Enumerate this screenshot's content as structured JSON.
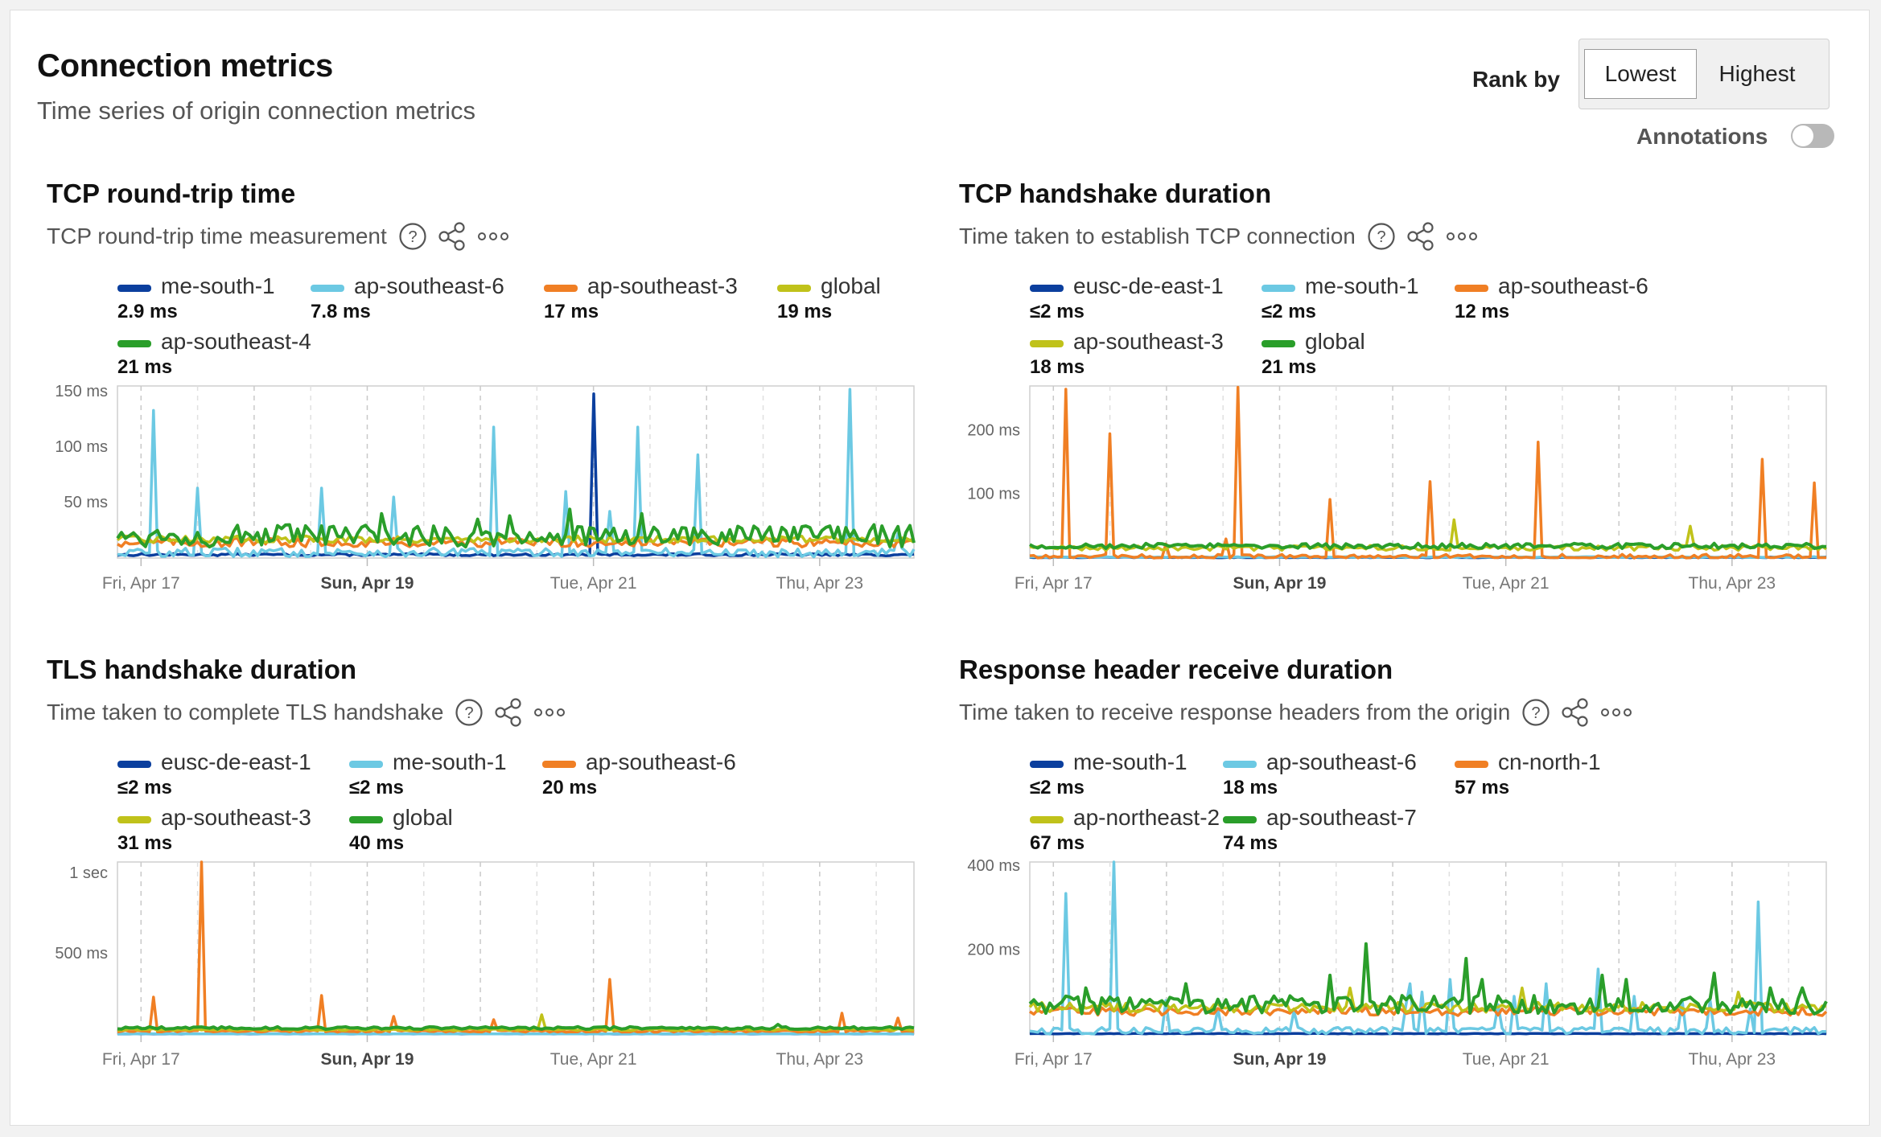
{
  "header": {
    "title": "Connection metrics",
    "subtitle": "Time series of origin connection metrics",
    "rank_by_label": "Rank by",
    "rank_options": [
      "Lowest",
      "Highest"
    ],
    "rank_selected": "Lowest",
    "annotations_label": "Annotations",
    "annotations_on": false
  },
  "icons": {
    "help": "help-circle-icon",
    "share": "share-icon",
    "more": "more-horizontal-icon"
  },
  "colors": {
    "dark_blue": "#0b3f9e",
    "light_blue": "#6cc9e3",
    "orange": "#f07f24",
    "olive": "#c0c21a",
    "green": "#2a9e2a",
    "gridline": "#d6d6d6",
    "frame": "#cfcfcf"
  },
  "x_ticks": [
    {
      "label": "Fri, Apr 17",
      "bold": false
    },
    {
      "label": "Sun, Apr 19",
      "bold": true
    },
    {
      "label": "Tue, Apr 21",
      "bold": false
    },
    {
      "label": "Thu, Apr 23",
      "bold": false
    }
  ],
  "panels": [
    {
      "title": "TCP round-trip time",
      "subtitle": "TCP round-trip time measurement",
      "legend_rows": [
        [
          {
            "name": "me-south-1",
            "value": "2.9 ms",
            "color": "#0b3f9e"
          },
          {
            "name": "ap-southeast-6",
            "value": "7.8 ms",
            "color": "#6cc9e3"
          },
          {
            "name": "ap-southeast-3",
            "value": "17 ms",
            "color": "#f07f24"
          },
          {
            "name": "global",
            "value": "19 ms",
            "color": "#c0c21a"
          }
        ],
        [
          {
            "name": "ap-southeast-4",
            "value": "21 ms",
            "color": "#2a9e2a"
          }
        ]
      ],
      "chart_data": {
        "type": "line",
        "x_start": "Apr 16 19:00",
        "x_end": "Apr 23 20:00",
        "x_ticks": [
          "Fri, Apr 17",
          "Sun, Apr 19",
          "Tue, Apr 21",
          "Thu, Apr 23"
        ],
        "y_ticks": [
          "50 ms",
          "100 ms",
          "150 ms"
        ],
        "ylim": [
          0,
          155
        ],
        "series": [
          {
            "name": "me-south-1",
            "color": "#0b3f9e",
            "base": 3,
            "noise": 1,
            "spikes": [
              [
                0.6,
                148
              ]
            ]
          },
          {
            "name": "ap-southeast-6",
            "color": "#6cc9e3",
            "base": 5,
            "noise": 4,
            "spikes": [
              [
                0.047,
                133
              ],
              [
                0.101,
                63
              ],
              [
                0.257,
                63
              ],
              [
                0.348,
                55
              ],
              [
                0.473,
                118
              ],
              [
                0.563,
                60
              ],
              [
                0.655,
                118
              ],
              [
                0.617,
                42
              ],
              [
                0.728,
                93
              ],
              [
                0.92,
                152
              ],
              [
                0.98,
                22
              ]
            ]
          },
          {
            "name": "ap-southeast-3",
            "color": "#f07f24",
            "base": 14,
            "noise": 4,
            "spikes": []
          },
          {
            "name": "global",
            "color": "#c0c21a",
            "base": 17,
            "noise": 3,
            "spikes": []
          },
          {
            "name": "ap-southeast-4",
            "color": "#2a9e2a",
            "base": 20,
            "noise": 10,
            "spikes": [
              [
                0.33,
                40
              ],
              [
                0.45,
                35
              ],
              [
                0.49,
                38
              ],
              [
                0.57,
                44
              ],
              [
                0.66,
                40
              ],
              [
                0.82,
                28
              ],
              [
                0.95,
                30
              ]
            ]
          }
        ]
      }
    },
    {
      "title": "TCP handshake duration",
      "subtitle": "Time taken to establish TCP connection",
      "legend_rows": [
        [
          {
            "name": "eusc-de-east-1",
            "value": "≤2 ms",
            "color": "#0b3f9e"
          },
          {
            "name": "me-south-1",
            "value": "≤2 ms",
            "color": "#6cc9e3"
          },
          {
            "name": "ap-southeast-6",
            "value": "12 ms",
            "color": "#f07f24"
          }
        ],
        [
          {
            "name": "ap-southeast-3",
            "value": "18 ms",
            "color": "#c0c21a"
          },
          {
            "name": "global",
            "value": "21 ms",
            "color": "#2a9e2a"
          }
        ]
      ],
      "chart_data": {
        "type": "line",
        "x_start": "Apr 16 19:00",
        "x_end": "Apr 23 20:00",
        "x_ticks": [
          "Fri, Apr 17",
          "Sun, Apr 19",
          "Tue, Apr 21",
          "Thu, Apr 23"
        ],
        "y_ticks": [
          "100 ms",
          "200 ms"
        ],
        "ylim": [
          0,
          270
        ],
        "series": [
          {
            "name": "eusc-de-east-1",
            "color": "#0b3f9e",
            "base": 1,
            "noise": 0.5,
            "spikes": []
          },
          {
            "name": "me-south-1",
            "color": "#6cc9e3",
            "base": 1.5,
            "noise": 0.5,
            "spikes": []
          },
          {
            "name": "ap-southeast-6",
            "color": "#f07f24",
            "base": 2,
            "noise": 4,
            "spikes": [
              [
                0.047,
                265
              ],
              [
                0.101,
                195
              ],
              [
                0.17,
                22
              ],
              [
                0.245,
                30
              ],
              [
                0.26,
                268
              ],
              [
                0.375,
                92
              ],
              [
                0.505,
                120
              ],
              [
                0.64,
                182
              ],
              [
                0.921,
                155
              ],
              [
                0.985,
                118
              ]
            ]
          },
          {
            "name": "ap-southeast-3",
            "color": "#c0c21a",
            "base": 16,
            "noise": 4,
            "spikes": [
              [
                0.533,
                60
              ],
              [
                0.828,
                50
              ]
            ]
          },
          {
            "name": "global",
            "color": "#2a9e2a",
            "base": 19,
            "noise": 4,
            "spikes": []
          }
        ]
      }
    },
    {
      "title": "TLS handshake duration",
      "subtitle": "Time taken to complete TLS handshake",
      "legend_rows": [
        [
          {
            "name": "eusc-de-east-1",
            "value": "≤2 ms",
            "color": "#0b3f9e"
          },
          {
            "name": "me-south-1",
            "value": "≤2 ms",
            "color": "#6cc9e3"
          },
          {
            "name": "ap-southeast-6",
            "value": "20 ms",
            "color": "#f07f24"
          }
        ],
        [
          {
            "name": "ap-southeast-3",
            "value": "31 ms",
            "color": "#c0c21a"
          },
          {
            "name": "global",
            "value": "40 ms",
            "color": "#2a9e2a"
          }
        ]
      ],
      "chart_data": {
        "type": "line",
        "x_start": "Apr 16 19:00",
        "x_end": "Apr 23 20:00",
        "x_ticks": [
          "Fri, Apr 17",
          "Sun, Apr 19",
          "Tue, Apr 21",
          "Thu, Apr 23"
        ],
        "y_ticks": [
          "500 ms",
          "1 sec"
        ],
        "ylim": [
          0,
          1070
        ],
        "series": [
          {
            "name": "eusc-de-east-1",
            "color": "#0b3f9e",
            "base": 1,
            "noise": 0.5,
            "spikes": []
          },
          {
            "name": "me-south-1",
            "color": "#6cc9e3",
            "base": 1.5,
            "noise": 0.5,
            "spikes": []
          },
          {
            "name": "ap-southeast-6",
            "color": "#f07f24",
            "base": 18,
            "noise": 6,
            "spikes": [
              [
                0.047,
                230
              ],
              [
                0.108,
                1070
              ],
              [
                0.257,
                240
              ],
              [
                0.348,
                110
              ],
              [
                0.473,
                90
              ],
              [
                0.618,
                340
              ],
              [
                0.908,
                130
              ],
              [
                0.98,
                100
              ]
            ]
          },
          {
            "name": "ap-southeast-3",
            "color": "#c0c21a",
            "base": 28,
            "noise": 6,
            "spikes": [
              [
                0.533,
                120
              ]
            ]
          },
          {
            "name": "global",
            "color": "#2a9e2a",
            "base": 38,
            "noise": 8,
            "spikes": [
              [
                0.83,
                60
              ]
            ]
          }
        ]
      }
    },
    {
      "title": "Response header receive duration",
      "subtitle": "Time taken to receive response headers from the origin",
      "legend_rows": [
        [
          {
            "name": "me-south-1",
            "value": "≤2 ms",
            "color": "#0b3f9e"
          },
          {
            "name": "ap-southeast-6",
            "value": "18 ms",
            "color": "#6cc9e3"
          },
          {
            "name": "cn-north-1",
            "value": "57 ms",
            "color": "#f07f24"
          }
        ],
        [
          {
            "name": "ap-northeast-2",
            "value": "67 ms",
            "color": "#c0c21a"
          },
          {
            "name": "ap-southeast-7",
            "value": "74 ms",
            "color": "#2a9e2a"
          }
        ]
      ],
      "chart_data": {
        "type": "line",
        "x_start": "Apr 16 19:00",
        "x_end": "Apr 23 20:00",
        "x_ticks": [
          "Fri, Apr 17",
          "Sun, Apr 19",
          "Tue, Apr 21",
          "Thu, Apr 23"
        ],
        "y_ticks": [
          "200 ms",
          "400 ms"
        ],
        "ylim": [
          0,
          410
        ],
        "series": [
          {
            "name": "me-south-1",
            "color": "#0b3f9e",
            "base": 1,
            "noise": 0.5,
            "spikes": []
          },
          {
            "name": "ap-southeast-6",
            "color": "#6cc9e3",
            "base": 8,
            "noise": 8,
            "spikes": [
              [
                0.047,
                335
              ],
              [
                0.108,
                410
              ],
              [
                0.172,
                80
              ],
              [
                0.235,
                60
              ],
              [
                0.33,
                55
              ],
              [
                0.472,
                70
              ],
              [
                0.475,
                120
              ],
              [
                0.492,
                100
              ],
              [
                0.526,
                130
              ],
              [
                0.59,
                70
              ],
              [
                0.61,
                90
              ],
              [
                0.65,
                120
              ],
              [
                0.712,
                155
              ],
              [
                0.76,
                90
              ],
              [
                0.82,
                80
              ],
              [
                0.855,
                80
              ],
              [
                0.906,
                60
              ],
              [
                0.915,
                315
              ]
            ]
          },
          {
            "name": "cn-north-1",
            "color": "#f07f24",
            "base": 54,
            "noise": 10,
            "spikes": []
          },
          {
            "name": "ap-northeast-2",
            "color": "#c0c21a",
            "base": 64,
            "noise": 12,
            "spikes": [
              [
                0.4,
                110
              ],
              [
                0.62,
                110
              ],
              [
                0.89,
                100
              ]
            ]
          },
          {
            "name": "ap-southeast-7",
            "color": "#2a9e2a",
            "base": 70,
            "noise": 22,
            "spikes": [
              [
                0.07,
                110
              ],
              [
                0.195,
                120
              ],
              [
                0.42,
                215
              ],
              [
                0.375,
                140
              ],
              [
                0.55,
                180
              ],
              [
                0.57,
                130
              ],
              [
                0.75,
                130
              ],
              [
                0.72,
                140
              ],
              [
                0.86,
                145
              ],
              [
                0.93,
                110
              ],
              [
                0.97,
                110
              ]
            ]
          }
        ]
      }
    }
  ]
}
